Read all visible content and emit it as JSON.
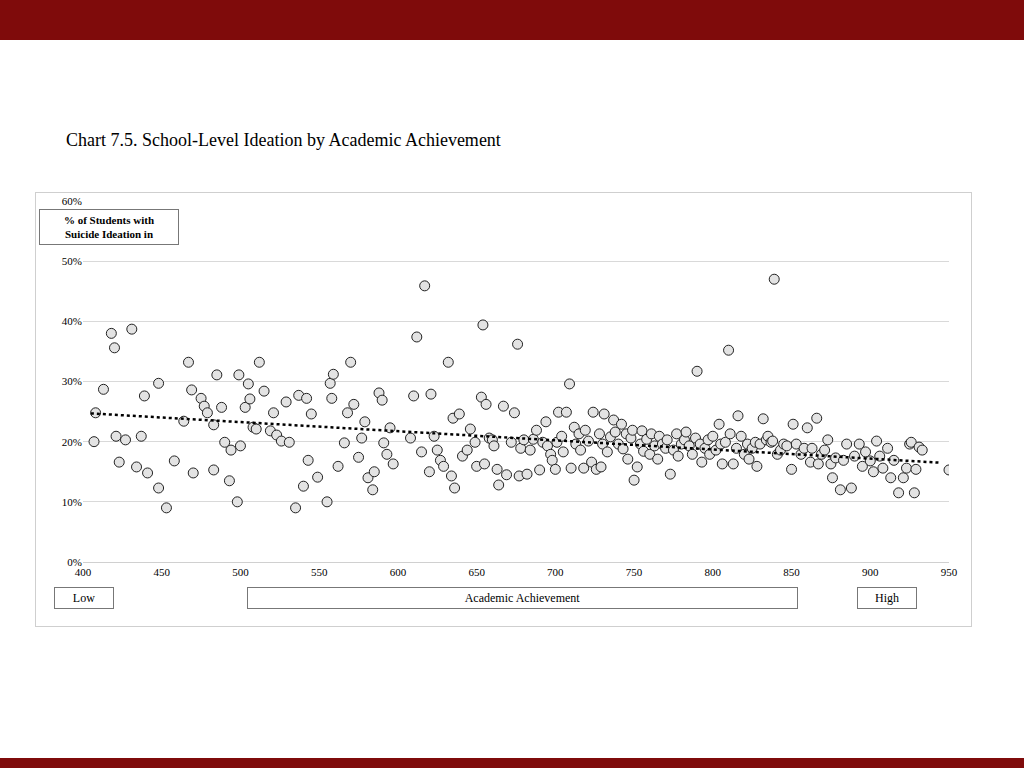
{
  "chart_data": {
    "type": "scatter",
    "title": "Chart 7.5. School-Level Ideation by Academic Achievement",
    "y_label": [
      "% of Students with",
      "Suicide Ideation in"
    ],
    "x_label": "Academic Achievement",
    "annotations": [
      "Low",
      "High"
    ],
    "xlim": [
      400,
      950
    ],
    "xticks": [
      400,
      450,
      500,
      550,
      600,
      650,
      700,
      750,
      800,
      850,
      900,
      950
    ],
    "ylim": [
      0,
      60
    ],
    "yticks": [
      {
        "value": 0,
        "label": "0%"
      },
      {
        "value": 10,
        "label": "10%"
      },
      {
        "value": 20,
        "label": "20%"
      },
      {
        "value": 30,
        "label": "30%"
      },
      {
        "value": 40,
        "label": "40%"
      },
      {
        "value": 50,
        "label": "50%"
      },
      {
        "value": 60,
        "label": "60%"
      }
    ],
    "grid": true,
    "series": [
      {
        "type": "scatter",
        "marker": "circle",
        "color": "#e3e3e3",
        "x": [
          408,
          407,
          413,
          418,
          420,
          421,
          423,
          427,
          431,
          434,
          437,
          439,
          441,
          448,
          448,
          453,
          458,
          464,
          467,
          469,
          470,
          475,
          477,
          479,
          483,
          483,
          485,
          488,
          490,
          493,
          494,
          498,
          499,
          500,
          503,
          505,
          506,
          508,
          510,
          512,
          515,
          519,
          521,
          523,
          526,
          529,
          531,
          535,
          537,
          540,
          542,
          543,
          545,
          549,
          555,
          557,
          558,
          559,
          562,
          566,
          568,
          570,
          572,
          575,
          577,
          579,
          581,
          584,
          585,
          588,
          590,
          591,
          593,
          595,
          597,
          608,
          610,
          612,
          615,
          617,
          620,
          621,
          623,
          625,
          627,
          629,
          632,
          634,
          635,
          636,
          639,
          641,
          644,
          646,
          649,
          650,
          653,
          654,
          655,
          656,
          658,
          660,
          661,
          663,
          664,
          667,
          669,
          672,
          674,
          676,
          677,
          678,
          680,
          682,
          684,
          686,
          688,
          690,
          692,
          694,
          695,
          697,
          698,
          700,
          701,
          702,
          704,
          705,
          707,
          709,
          710,
          712,
          713,
          715,
          716,
          718,
          719,
          721,
          723,
          724,
          726,
          728,
          729,
          730,
          731,
          733,
          735,
          737,
          738,
          740,
          742,
          743,
          745,
          746,
          748,
          749,
          750,
          752,
          754,
          755,
          756,
          758,
          760,
          761,
          763,
          765,
          766,
          768,
          770,
          771,
          773,
          775,
          777,
          778,
          780,
          782,
          783,
          785,
          787,
          789,
          790,
          792,
          793,
          795,
          797,
          798,
          800,
          802,
          804,
          805,
          806,
          808,
          810,
          811,
          813,
          815,
          816,
          818,
          820,
          822,
          823,
          825,
          827,
          828,
          830,
          832,
          834,
          835,
          837,
          838,
          839,
          841,
          843,
          845,
          847,
          850,
          851,
          853,
          856,
          858,
          860,
          862,
          863,
          866,
          867,
          869,
          871,
          873,
          875,
          876,
          878,
          881,
          883,
          885,
          888,
          890,
          893,
          895,
          897,
          900,
          902,
          904,
          906,
          908,
          911,
          913,
          915,
          918,
          921,
          923,
          925,
          926,
          928,
          929,
          931,
          933,
          950
        ],
        "values": [
          24.8,
          20.0,
          28.7,
          38.0,
          35.6,
          20.9,
          16.6,
          20.3,
          38.7,
          15.8,
          20.9,
          27.6,
          14.8,
          29.7,
          12.3,
          9.0,
          16.8,
          23.4,
          33.2,
          28.6,
          14.8,
          27.2,
          25.9,
          24.8,
          22.8,
          15.3,
          31.1,
          25.7,
          19.9,
          13.5,
          18.6,
          10.0,
          31.1,
          19.3,
          25.7,
          29.6,
          27.1,
          22.4,
          22.1,
          33.2,
          28.4,
          21.8,
          24.8,
          21.1,
          20.1,
          26.6,
          19.9,
          9.0,
          27.7,
          12.6,
          27.2,
          16.9,
          24.6,
          14.1,
          10.0,
          29.7,
          27.2,
          31.2,
          15.9,
          19.8,
          24.8,
          33.2,
          26.2,
          17.4,
          20.6,
          23.3,
          14.0,
          12.0,
          15.0,
          28.1,
          26.9,
          19.8,
          17.9,
          22.3,
          16.3,
          20.6,
          27.6,
          37.4,
          18.3,
          45.9,
          15.0,
          27.9,
          20.9,
          18.6,
          16.9,
          15.9,
          33.2,
          14.3,
          23.9,
          12.3,
          24.6,
          17.6,
          18.6,
          22.1,
          19.9,
          15.9,
          27.4,
          39.4,
          16.3,
          26.2,
          20.6,
          20.3,
          19.3,
          15.4,
          12.8,
          25.9,
          14.5,
          19.9,
          24.8,
          36.2,
          14.3,
          18.9,
          20.3,
          14.6,
          18.6,
          20.4,
          21.9,
          15.3,
          19.9,
          23.3,
          19.3,
          17.9,
          16.9,
          15.4,
          19.9,
          24.9,
          20.9,
          18.3,
          24.9,
          29.6,
          15.6,
          22.4,
          19.6,
          21.3,
          18.6,
          15.6,
          21.9,
          20.1,
          16.6,
          24.9,
          15.4,
          21.3,
          15.8,
          19.6,
          24.6,
          18.3,
          20.8,
          23.6,
          21.6,
          19.6,
          22.9,
          18.8,
          21.3,
          17.1,
          20.6,
          21.9,
          13.6,
          15.8,
          19.6,
          21.8,
          18.4,
          20.4,
          17.9,
          21.3,
          19.3,
          17.1,
          20.9,
          19.6,
          18.9,
          20.3,
          14.6,
          18.6,
          21.3,
          17.6,
          19.6,
          20.3,
          21.6,
          19.3,
          17.9,
          20.6,
          31.7,
          19.6,
          16.6,
          18.9,
          20.3,
          17.9,
          20.9,
          18.6,
          22.9,
          19.6,
          16.3,
          19.9,
          35.2,
          21.3,
          16.3,
          18.9,
          24.3,
          20.9,
          17.9,
          19.6,
          17.1,
          18.9,
          19.9,
          15.9,
          19.6,
          23.8,
          20.3,
          20.9,
          19.9,
          20.1,
          47.0,
          17.9,
          18.6,
          19.6,
          19.3,
          15.4,
          22.9,
          19.6,
          17.9,
          18.9,
          22.3,
          16.6,
          18.9,
          23.9,
          16.3,
          17.9,
          18.6,
          20.3,
          16.3,
          14.0,
          17.3,
          12.0,
          16.9,
          19.6,
          12.3,
          17.6,
          19.6,
          15.9,
          18.3,
          16.8,
          15.0,
          20.1,
          17.6,
          15.6,
          18.9,
          14.0,
          16.9,
          11.5,
          14.0,
          15.6,
          19.6,
          19.9,
          11.5,
          15.4,
          19.1,
          18.6,
          15.3
        ]
      },
      {
        "type": "line",
        "line_style": "dotted",
        "color": "#000000",
        "x": [
          405,
          945
        ],
        "values": [
          24.7,
          16.5
        ]
      }
    ]
  }
}
